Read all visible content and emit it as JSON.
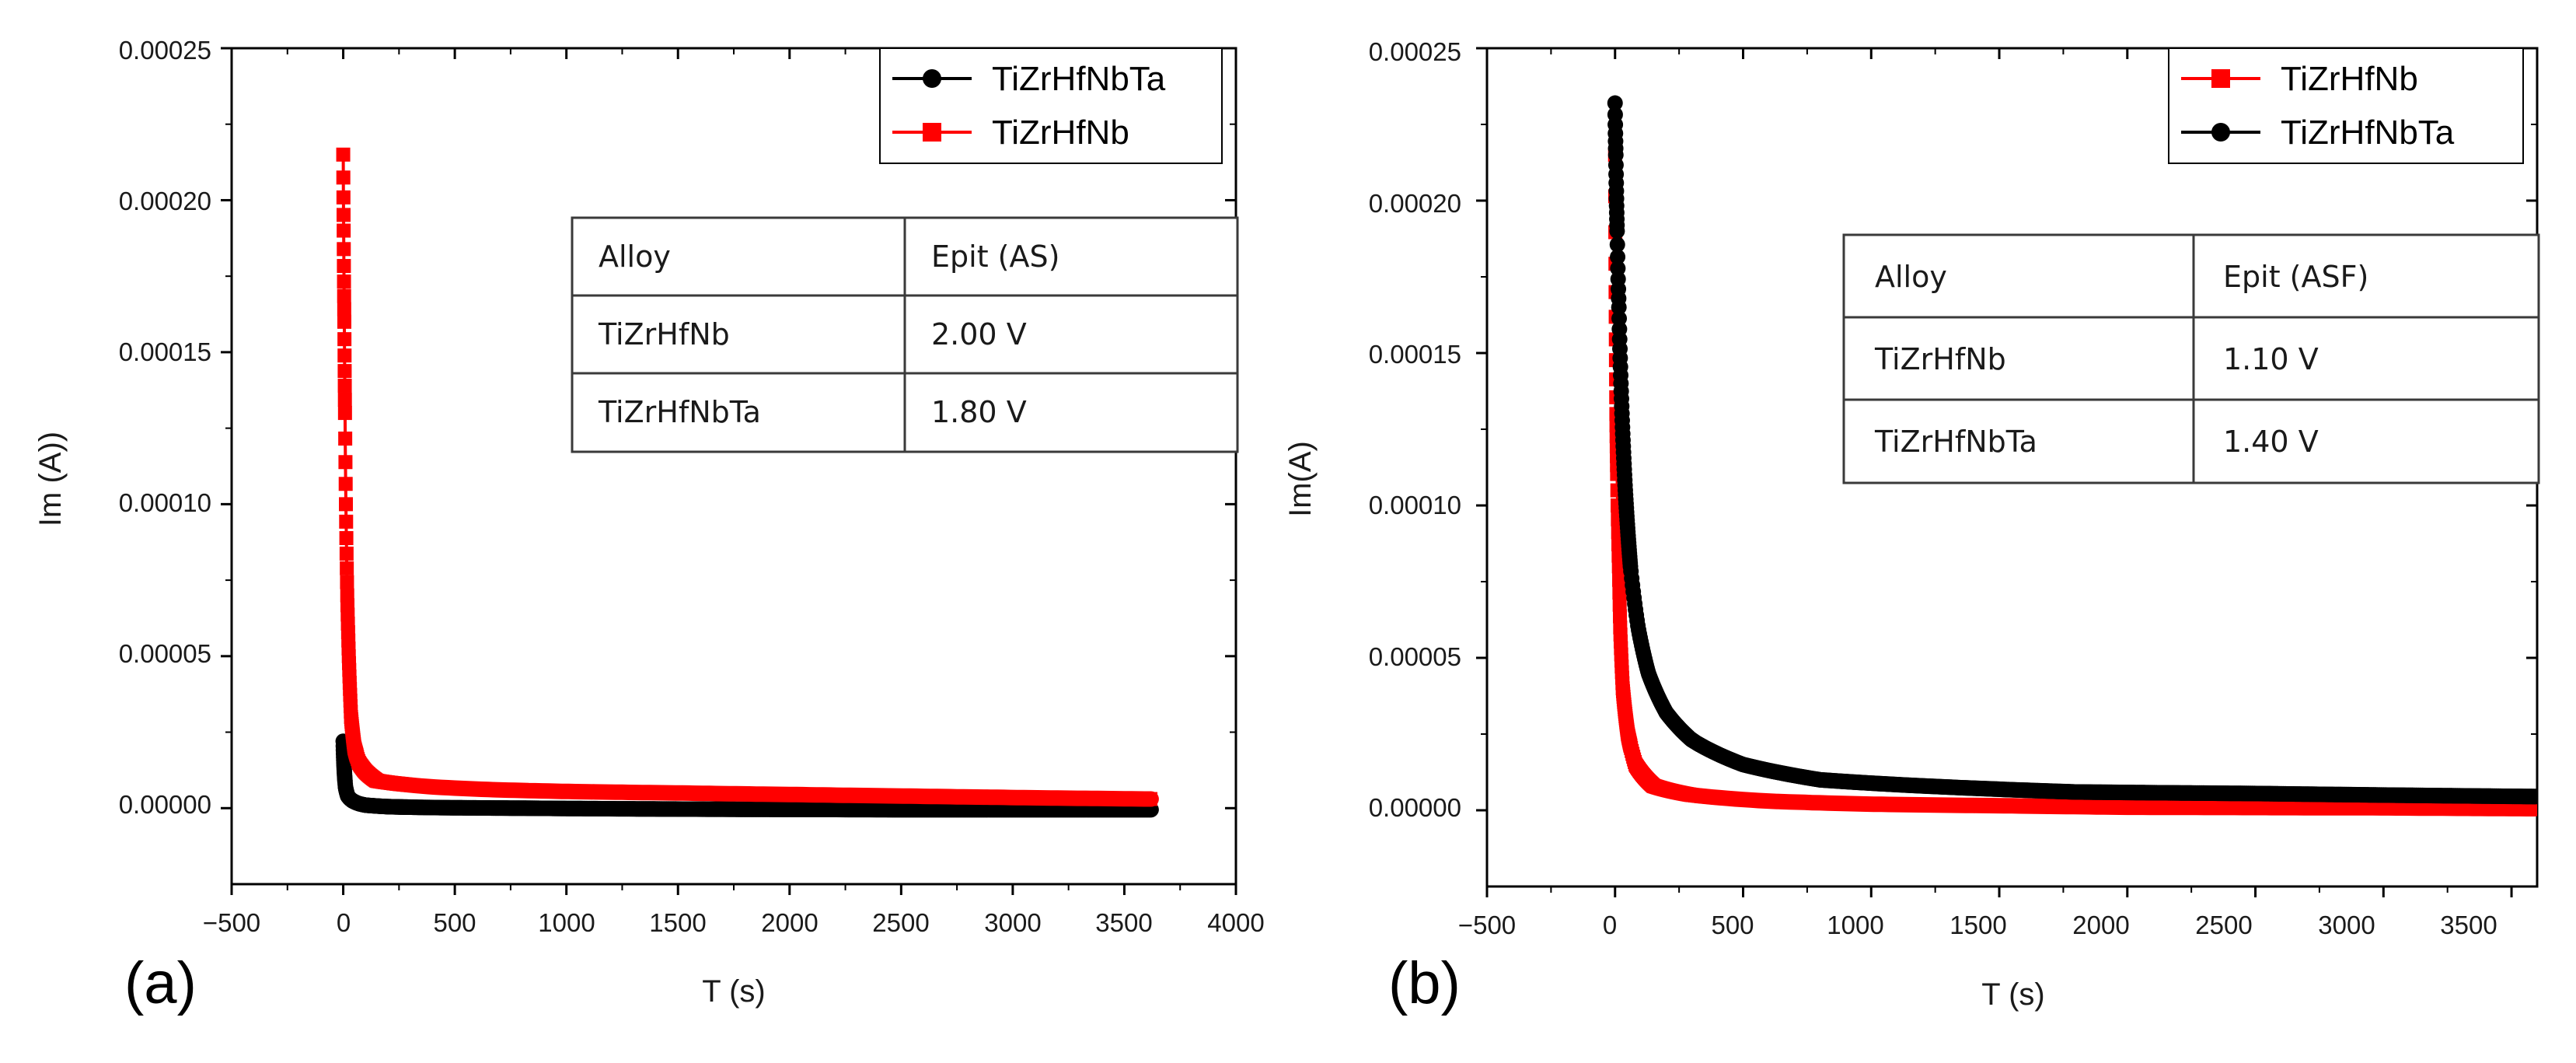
{
  "colors": {
    "red": "#ff0000",
    "black": "#000000"
  },
  "chart_data": [
    {
      "type": "line",
      "panel_label": "(a)",
      "xlabel": "T (s)",
      "ylabel": "Im (A))",
      "xlim": [
        -500,
        4000
      ],
      "ylim": [
        -2.5e-05,
        0.00025
      ],
      "xticks": [
        -500,
        0,
        500,
        1000,
        1500,
        2000,
        2500,
        3000,
        3500,
        4000
      ],
      "xtick_labels": [
        "−500",
        "0",
        "500",
        "1000",
        "1500",
        "2000",
        "2500",
        "3000",
        "3500",
        "4000"
      ],
      "yticks": [
        0,
        5e-05,
        0.0001,
        0.00015,
        0.0002,
        0.00025
      ],
      "ytick_labels": [
        "0.00000",
        "0.00005",
        "0.00010",
        "0.00015",
        "0.00020",
        "0.00025"
      ],
      "legend_position": "top-right",
      "series": [
        {
          "name": "TiZrHfNbTa",
          "color": "#000000",
          "marker": "circle",
          "x": [
            0,
            5,
            10,
            20,
            40,
            70,
            100,
            200,
            400,
            800,
            1500,
            2500,
            3620
          ],
          "y": [
            2.2e-05,
            1.2e-05,
            7e-06,
            4e-06,
            2.5e-06,
            1.5e-06,
            1e-06,
            5e-07,
            2e-07,
            0.0,
            -3e-07,
            -5e-07,
            -5e-07
          ]
        },
        {
          "name": "TiZrHfNb",
          "color": "#ff0000",
          "marker": "square",
          "x": [
            0,
            2,
            5,
            8,
            12,
            18,
            25,
            35,
            50,
            70,
            100,
            150,
            250,
            400,
            700,
            1000,
            1500,
            2000,
            2500,
            3000,
            3620
          ],
          "y": [
            0.000215,
            0.00019,
            0.00016,
            0.00013,
            0.0001,
            7e-05,
            5e-05,
            3e-05,
            2e-05,
            1.5e-05,
            1.2e-05,
            9e-06,
            8e-06,
            7e-06,
            6e-06,
            5.5e-06,
            5e-06,
            4.5e-06,
            4e-06,
            3.5e-06,
            3e-06
          ]
        }
      ],
      "table": {
        "headers": [
          "Alloy",
          "Epit (AS)"
        ],
        "rows": [
          [
            "TiZrHfNb",
            "2.00 V"
          ],
          [
            "TiZrHfNbTa",
            "1.80 V"
          ]
        ]
      }
    },
    {
      "type": "line",
      "panel_label": "(b)",
      "xlabel": "T (s)",
      "ylabel": "Im(A)",
      "xlim": [
        -500,
        3600
      ],
      "ylim": [
        -2.5e-05,
        0.00025
      ],
      "xticks": [
        -500,
        0,
        500,
        1000,
        1500,
        2000,
        2500,
        3000,
        3500
      ],
      "xtick_labels": [
        "−500",
        "0",
        "500",
        "1000",
        "1500",
        "2000",
        "2500",
        "3000",
        "3500"
      ],
      "yticks": [
        0,
        5e-05,
        0.0001,
        0.00015,
        0.0002,
        0.00025
      ],
      "ytick_labels": [
        "0.00000",
        "0.00005",
        "0.00010",
        "0.00015",
        "0.00020",
        "0.00025"
      ],
      "legend_position": "top-right",
      "series": [
        {
          "name": "TiZrHfNb",
          "color": "#ff0000",
          "marker": "square",
          "x": [
            0,
            2,
            5,
            10,
            15,
            20,
            30,
            50,
            80,
            150,
            300,
            600,
            1000,
            1500,
            2000,
            3000,
            3600
          ],
          "y": [
            0.000215,
            0.00017,
            0.00013,
            0.0001,
            8e-05,
            6e-05,
            4e-05,
            2.5e-05,
            1.5e-05,
            8e-06,
            5e-06,
            3e-06,
            2e-06,
            1.5e-06,
            1e-06,
            8e-07,
            5e-07
          ]
        },
        {
          "name": "TiZrHfNbTa",
          "color": "#000000",
          "marker": "circle",
          "x": [
            0,
            3,
            8,
            15,
            25,
            40,
            60,
            90,
            130,
            200,
            300,
            500,
            800,
            1200,
            1800,
            2500,
            3000,
            3600
          ],
          "y": [
            0.000232,
            0.000215,
            0.00019,
            0.000165,
            0.000135,
            0.000105,
            8e-05,
            6e-05,
            4.5e-05,
            3.2e-05,
            2.3e-05,
            1.5e-05,
            1e-05,
            8e-06,
            6e-06,
            5.5e-06,
            5e-06,
            4.5e-06
          ]
        }
      ],
      "table": {
        "headers": [
          "Alloy",
          "Epit (ASF)"
        ],
        "rows": [
          [
            "TiZrHfNb",
            "1.10 V"
          ],
          [
            "TiZrHfNbTa",
            "1.40 V"
          ]
        ]
      }
    }
  ]
}
